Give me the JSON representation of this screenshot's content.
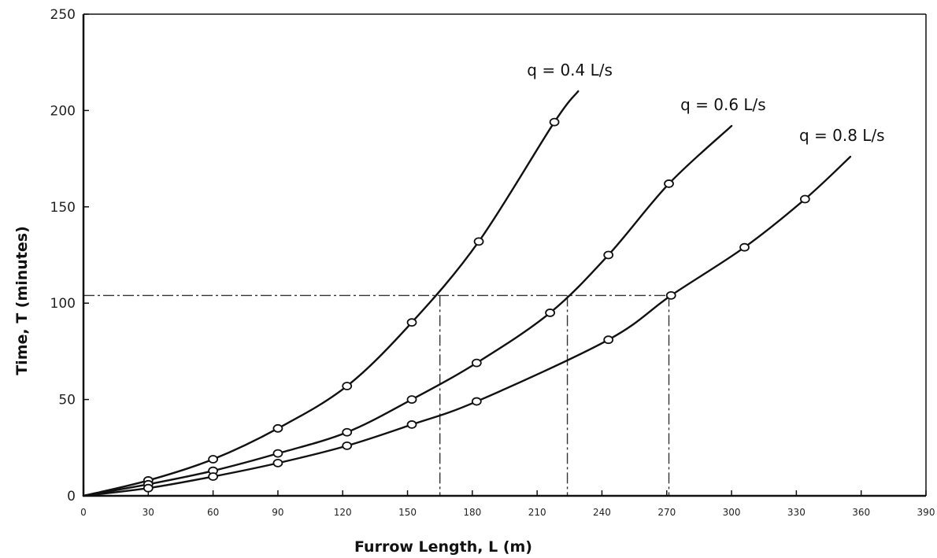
{
  "chart_data": {
    "type": "line",
    "title": "",
    "xlabel": "Furrow Length, L (m)",
    "ylabel": "Time, T (minutes)",
    "xlim": [
      0,
      390
    ],
    "ylim": [
      0,
      250
    ],
    "x_ticks": [
      "0",
      "30",
      "60",
      "90",
      "120",
      "150",
      "180",
      "210",
      "240",
      "270",
      "300",
      "330",
      "360",
      "390"
    ],
    "y_ticks": [
      "0",
      "50",
      "100",
      "150",
      "200",
      "250"
    ],
    "grid": false,
    "series": [
      {
        "name": "q = 0.4 L/s",
        "points": [
          [
            0,
            0
          ],
          [
            30,
            8
          ],
          [
            60,
            19
          ],
          [
            90,
            35
          ],
          [
            122,
            57
          ],
          [
            152,
            90
          ],
          [
            183,
            132
          ],
          [
            218,
            194
          ]
        ],
        "end": [
          229,
          210
        ]
      },
      {
        "name": "q = 0.6 L/s",
        "points": [
          [
            0,
            0
          ],
          [
            30,
            6
          ],
          [
            60,
            13
          ],
          [
            90,
            22
          ],
          [
            122,
            33
          ],
          [
            152,
            50
          ],
          [
            182,
            69
          ],
          [
            216,
            95
          ],
          [
            243,
            125
          ],
          [
            271,
            162
          ]
        ],
        "end": [
          300,
          192
        ]
      },
      {
        "name": "q = 0.8 L/s",
        "points": [
          [
            0,
            0
          ],
          [
            30,
            4
          ],
          [
            60,
            10
          ],
          [
            90,
            17
          ],
          [
            122,
            26
          ],
          [
            152,
            37
          ],
          [
            182,
            49
          ],
          [
            243,
            81
          ],
          [
            272,
            104
          ],
          [
            306,
            129
          ],
          [
            334,
            154
          ]
        ],
        "end": [
          355,
          176
        ]
      }
    ],
    "reference_lines": {
      "y": 104,
      "x": [
        165,
        224,
        271
      ]
    }
  }
}
